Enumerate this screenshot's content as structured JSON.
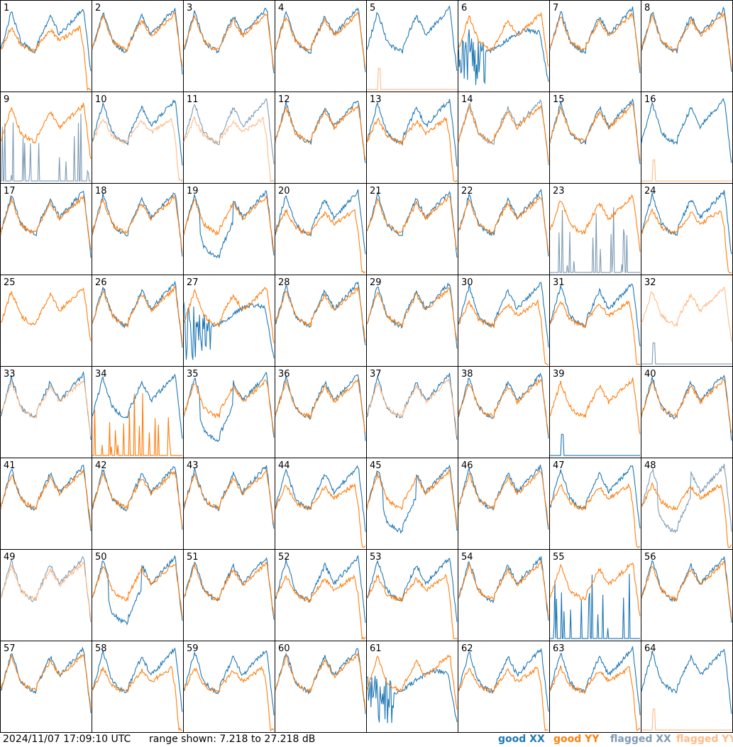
{
  "footer": {
    "timestamp": "2024/11/07 17:09:10 UTC",
    "range": "range shown: 7.218 to 27.218 dB"
  },
  "legend": {
    "good_xx": "good XX",
    "good_yy": "good YY",
    "flagged_xx": "flagged XX",
    "flagged_yy": "flagged YY"
  },
  "colors": {
    "good_xx": "#1f77b4",
    "good_yy": "#ff7f0e",
    "flagged_xx": "#7f9bb5",
    "flagged_yy": "#ffbb88",
    "grid": "#000000"
  },
  "chart_data": {
    "type": "line",
    "layout": "8x8 grid of small multiples",
    "ylim": [
      7.218,
      27.218
    ],
    "y_unit": "dB",
    "panels": [
      {
        "id": 1,
        "xx": "good",
        "yy": "good",
        "xx_shape": "normal",
        "yy_shape": "rolloff"
      },
      {
        "id": 2,
        "xx": "good",
        "yy": "good",
        "xx_shape": "normal",
        "yy_shape": "normal"
      },
      {
        "id": 3,
        "xx": "good",
        "yy": "good",
        "xx_shape": "normal",
        "yy_shape": "normal"
      },
      {
        "id": 4,
        "xx": "good",
        "yy": "good",
        "xx_shape": "normal",
        "yy_shape": "normal"
      },
      {
        "id": 5,
        "xx": "good",
        "yy": "flagged",
        "xx_shape": "normal",
        "yy_shape": "flat"
      },
      {
        "id": 6,
        "xx": "good",
        "yy": "good",
        "xx_shape": "damaged",
        "yy_shape": "normal"
      },
      {
        "id": 7,
        "xx": "good",
        "yy": "good",
        "xx_shape": "normal",
        "yy_shape": "normal"
      },
      {
        "id": 8,
        "xx": "good",
        "yy": "good",
        "xx_shape": "normal",
        "yy_shape": "normal"
      },
      {
        "id": 9,
        "xx": "flagged",
        "yy": "good",
        "xx_shape": "spiky",
        "yy_shape": "normal"
      },
      {
        "id": 10,
        "xx": "good",
        "yy": "flagged",
        "xx_shape": "normal",
        "yy_shape": "rolloff"
      },
      {
        "id": 11,
        "xx": "flagged",
        "yy": "flagged",
        "xx_shape": "normal",
        "yy_shape": "rolloff"
      },
      {
        "id": 12,
        "xx": "good",
        "yy": "good",
        "xx_shape": "normal",
        "yy_shape": "normal"
      },
      {
        "id": 13,
        "xx": "good",
        "yy": "good",
        "xx_shape": "normal",
        "yy_shape": "rolloff"
      },
      {
        "id": 14,
        "xx": "flagged",
        "yy": "good",
        "xx_shape": "normal",
        "yy_shape": "normal"
      },
      {
        "id": 15,
        "xx": "good",
        "yy": "good",
        "xx_shape": "normal",
        "yy_shape": "normal"
      },
      {
        "id": 16,
        "xx": "good",
        "yy": "flagged",
        "xx_shape": "normal",
        "yy_shape": "flat"
      },
      {
        "id": 17,
        "xx": "good",
        "yy": "good",
        "xx_shape": "normal",
        "yy_shape": "normal"
      },
      {
        "id": 18,
        "xx": "good",
        "yy": "good",
        "xx_shape": "normal",
        "yy_shape": "normal"
      },
      {
        "id": 19,
        "xx": "good",
        "yy": "good",
        "xx_shape": "deep",
        "yy_shape": "normal"
      },
      {
        "id": 20,
        "xx": "good",
        "yy": "good",
        "xx_shape": "normal",
        "yy_shape": "rolloff"
      },
      {
        "id": 21,
        "xx": "good",
        "yy": "good",
        "xx_shape": "normal",
        "yy_shape": "normal"
      },
      {
        "id": 22,
        "xx": "good",
        "yy": "good",
        "xx_shape": "normal",
        "yy_shape": "normal"
      },
      {
        "id": 23,
        "xx": "flagged",
        "yy": "good",
        "xx_shape": "spiky",
        "yy_shape": "normal"
      },
      {
        "id": 24,
        "xx": "good",
        "yy": "good",
        "xx_shape": "normal",
        "yy_shape": "rolloff"
      },
      {
        "id": 25,
        "xx": "none",
        "yy": "good",
        "xx_shape": "normal",
        "yy_shape": "normal"
      },
      {
        "id": 26,
        "xx": "good",
        "yy": "good",
        "xx_shape": "normal",
        "yy_shape": "normal"
      },
      {
        "id": 27,
        "xx": "good",
        "yy": "good",
        "xx_shape": "damaged",
        "yy_shape": "normal"
      },
      {
        "id": 28,
        "xx": "good",
        "yy": "good",
        "xx_shape": "normal",
        "yy_shape": "normal"
      },
      {
        "id": 29,
        "xx": "good",
        "yy": "good",
        "xx_shape": "normal",
        "yy_shape": "normal"
      },
      {
        "id": 30,
        "xx": "good",
        "yy": "good",
        "xx_shape": "normal",
        "yy_shape": "rolloff"
      },
      {
        "id": 31,
        "xx": "good",
        "yy": "good",
        "xx_shape": "normal",
        "yy_shape": "rolloff"
      },
      {
        "id": 32,
        "xx": "flagged",
        "yy": "flagged",
        "xx_shape": "flat",
        "yy_shape": "normal"
      },
      {
        "id": 33,
        "xx": "good",
        "yy": "flagged",
        "xx_shape": "normal",
        "yy_shape": "normal"
      },
      {
        "id": 34,
        "xx": "good",
        "yy": "good",
        "xx_shape": "normal",
        "yy_shape": "spiky"
      },
      {
        "id": 35,
        "xx": "good",
        "yy": "good",
        "xx_shape": "deep",
        "yy_shape": "normal"
      },
      {
        "id": 36,
        "xx": "good",
        "yy": "good",
        "xx_shape": "normal",
        "yy_shape": "normal"
      },
      {
        "id": 37,
        "xx": "good",
        "yy": "flagged",
        "xx_shape": "normal",
        "yy_shape": "normal"
      },
      {
        "id": 38,
        "xx": "good",
        "yy": "good",
        "xx_shape": "normal",
        "yy_shape": "normal"
      },
      {
        "id": 39,
        "xx": "good",
        "yy": "good",
        "xx_shape": "flat",
        "yy_shape": "normal"
      },
      {
        "id": 40,
        "xx": "good",
        "yy": "good",
        "xx_shape": "normal",
        "yy_shape": "normal"
      },
      {
        "id": 41,
        "xx": "good",
        "yy": "good",
        "xx_shape": "normal",
        "yy_shape": "normal"
      },
      {
        "id": 42,
        "xx": "good",
        "yy": "good",
        "xx_shape": "normal",
        "yy_shape": "normal"
      },
      {
        "id": 43,
        "xx": "good",
        "yy": "good",
        "xx_shape": "normal",
        "yy_shape": "normal"
      },
      {
        "id": 44,
        "xx": "good",
        "yy": "good",
        "xx_shape": "normal",
        "yy_shape": "rolloff"
      },
      {
        "id": 45,
        "xx": "good",
        "yy": "good",
        "xx_shape": "deep",
        "yy_shape": "normal"
      },
      {
        "id": 46,
        "xx": "good",
        "yy": "good",
        "xx_shape": "normal",
        "yy_shape": "normal"
      },
      {
        "id": 47,
        "xx": "good",
        "yy": "good",
        "xx_shape": "normal",
        "yy_shape": "rolloff"
      },
      {
        "id": 48,
        "xx": "flagged",
        "yy": "good",
        "xx_shape": "deep",
        "yy_shape": "rolloff"
      },
      {
        "id": 49,
        "xx": "flagged",
        "yy": "flagged",
        "xx_shape": "normal",
        "yy_shape": "normal"
      },
      {
        "id": 50,
        "xx": "good",
        "yy": "good",
        "xx_shape": "deep",
        "yy_shape": "normal"
      },
      {
        "id": 51,
        "xx": "good",
        "yy": "good",
        "xx_shape": "normal",
        "yy_shape": "normal"
      },
      {
        "id": 52,
        "xx": "good",
        "yy": "good",
        "xx_shape": "normal",
        "yy_shape": "rolloff"
      },
      {
        "id": 53,
        "xx": "good",
        "yy": "good",
        "xx_shape": "normal",
        "yy_shape": "rolloff"
      },
      {
        "id": 54,
        "xx": "good",
        "yy": "good",
        "xx_shape": "normal",
        "yy_shape": "normal"
      },
      {
        "id": 55,
        "xx": "good",
        "yy": "good",
        "xx_shape": "spiky",
        "yy_shape": "normal"
      },
      {
        "id": 56,
        "xx": "good",
        "yy": "good",
        "xx_shape": "normal",
        "yy_shape": "normal"
      },
      {
        "id": 57,
        "xx": "good",
        "yy": "good",
        "xx_shape": "normal",
        "yy_shape": "normal"
      },
      {
        "id": 58,
        "xx": "good",
        "yy": "good",
        "xx_shape": "normal",
        "yy_shape": "rolloff"
      },
      {
        "id": 59,
        "xx": "good",
        "yy": "good",
        "xx_shape": "normal",
        "yy_shape": "rolloff"
      },
      {
        "id": 60,
        "xx": "good",
        "yy": "good",
        "xx_shape": "normal",
        "yy_shape": "normal"
      },
      {
        "id": 61,
        "xx": "good",
        "yy": "good",
        "xx_shape": "damaged",
        "yy_shape": "normal"
      },
      {
        "id": 62,
        "xx": "good",
        "yy": "good",
        "xx_shape": "normal",
        "yy_shape": "rolloff"
      },
      {
        "id": 63,
        "xx": "good",
        "yy": "good",
        "xx_shape": "normal",
        "yy_shape": "rolloff"
      },
      {
        "id": 64,
        "xx": "good",
        "yy": "flagged",
        "xx_shape": "normal",
        "yy_shape": "flat"
      }
    ]
  }
}
